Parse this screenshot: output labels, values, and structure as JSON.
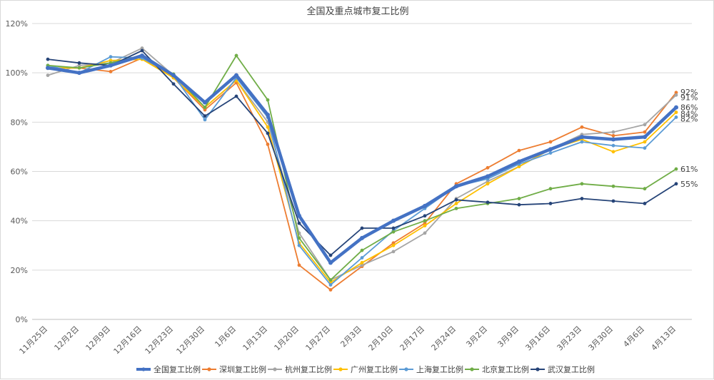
{
  "chart_data": {
    "type": "line",
    "title": "全国及重点城市复工比例",
    "xlabel": "",
    "ylabel": "",
    "ylim": [
      0,
      120
    ],
    "yticks": [
      0,
      20,
      40,
      60,
      80,
      100,
      120
    ],
    "ytick_labels": [
      "0%",
      "20%",
      "40%",
      "60%",
      "80%",
      "100%",
      "120%"
    ],
    "grid": "horizontal",
    "legend_position": "bottom",
    "categories": [
      "11月25日",
      "12月2日",
      "12月9日",
      "12月16日",
      "12月23日",
      "12月30日",
      "1月6日",
      "1月13日",
      "1月20日",
      "1月27日",
      "2月3日",
      "2月10日",
      "2月17日",
      "2月24日",
      "3月2日",
      "3月9日",
      "3月16日",
      "3月23日",
      "3月30日",
      "4月6日",
      "4月13日"
    ],
    "series": [
      {
        "name": "全国复工比例",
        "color": "#4472c4",
        "values": [
          102,
          100,
          103,
          107,
          99,
          88,
          99,
          83,
          42,
          23,
          33,
          40,
          46,
          54,
          58,
          64,
          69,
          74,
          73,
          74,
          86
        ],
        "end_label": "86%"
      },
      {
        "name": "深圳复工比例",
        "color": "#ed7d31",
        "values": [
          102,
          102,
          100.5,
          106,
          98,
          85,
          96,
          71,
          22,
          12,
          21.5,
          31,
          39,
          55,
          61.5,
          68.5,
          72,
          78,
          74.5,
          76,
          92
        ],
        "end_label": "92%"
      },
      {
        "name": "杭州复工比例",
        "color": "#a5a5a5",
        "values": [
          99,
          103,
          104,
          110,
          99,
          86,
          97,
          80,
          35,
          16,
          22,
          27.5,
          35,
          49,
          56,
          62,
          69,
          75,
          76,
          79,
          91
        ],
        "end_label": "91%"
      },
      {
        "name": "广州复工比例",
        "color": "#ffc000",
        "values": [
          102,
          102,
          105,
          105.5,
          98,
          86,
          97,
          78,
          31,
          15,
          23,
          30,
          38,
          47,
          55,
          62,
          69,
          73,
          68,
          72,
          84
        ],
        "end_label": "84%"
      },
      {
        "name": "上海复工比例",
        "color": "#5b9bd5",
        "values": [
          103,
          100,
          106.5,
          106,
          99,
          81,
          98,
          82,
          30,
          14,
          25,
          36,
          45,
          54,
          57,
          63,
          67.5,
          72,
          70.5,
          69.5,
          82
        ],
        "end_label": "82%"
      },
      {
        "name": "北京复工比例",
        "color": "#70ad47",
        "values": [
          103,
          102,
          104,
          107,
          99.5,
          86,
          107,
          89,
          33,
          16,
          28,
          35.5,
          40,
          45,
          47,
          49,
          53,
          55,
          54,
          53,
          61
        ],
        "end_label": "61%"
      },
      {
        "name": "武汉复工比例",
        "color": "#264478",
        "values": [
          105.5,
          104,
          103,
          109,
          95.5,
          82.5,
          90.5,
          75.5,
          39,
          26,
          37,
          37,
          42,
          48.5,
          47.5,
          46.5,
          47,
          49,
          48,
          47,
          55
        ],
        "end_label": "55%"
      }
    ]
  }
}
